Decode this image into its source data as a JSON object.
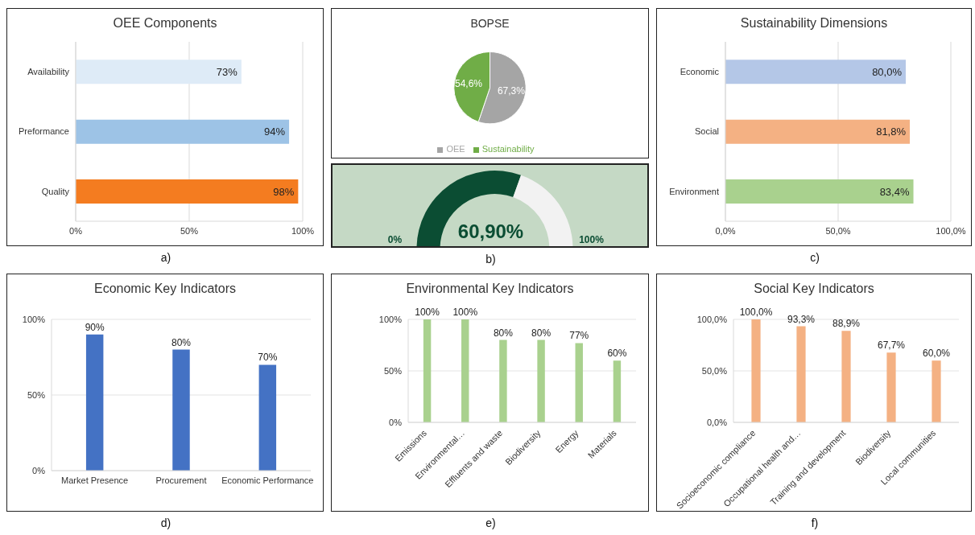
{
  "chart_data": [
    {
      "type": "bar",
      "orientation": "horizontal",
      "title": "OEE Components",
      "categories": [
        "Availability",
        "Preformance",
        "Quality"
      ],
      "values": [
        73,
        94,
        98
      ],
      "colors": [
        "#deebf7",
        "#9dc3e6",
        "#f47c20"
      ],
      "value_labels": [
        "73%",
        "94%",
        "98%"
      ],
      "xlim": [
        0,
        100
      ],
      "xticks": [
        {
          "value": 0,
          "label": "0%"
        },
        {
          "value": 50,
          "label": "50%"
        },
        {
          "value": 100,
          "label": "100%"
        }
      ],
      "grid": "x",
      "annotations": [
        "a)"
      ]
    },
    {
      "type": "pie",
      "title": "BOPSE",
      "categories": [
        "OEE",
        "Sustainability"
      ],
      "values": [
        67.3,
        54.6
      ],
      "colors": [
        "#a5a5a5",
        "#70ad47"
      ],
      "value_labels": [
        "67,3%",
        "54,6%"
      ],
      "legend": "bottom"
    },
    {
      "type": "donut",
      "categories": [
        null,
        null
      ],
      "values": [
        60.9,
        39.1
      ],
      "colors": [
        "#0b4d33",
        "#f2f2f2"
      ],
      "value_labels": [
        "60,90%",
        null
      ],
      "annotations": [
        "0%",
        "100%",
        "b)"
      ]
    },
    {
      "type": "bar",
      "orientation": "horizontal",
      "title": "Sustainability Dimensions",
      "categories": [
        "Economic",
        "Social",
        "Environment"
      ],
      "values": [
        80.0,
        81.8,
        83.4
      ],
      "colors": [
        "#b4c7e7",
        "#f4b183",
        "#a9d18e"
      ],
      "value_labels": [
        "80,0%",
        "81,8%",
        "83,4%"
      ],
      "xlim": [
        0,
        100
      ],
      "xticks": [
        {
          "value": 0,
          "label": "0,0%"
        },
        {
          "value": 50,
          "label": "50,0%"
        },
        {
          "value": 100,
          "label": "100,0%"
        }
      ],
      "grid": "x",
      "annotations": [
        "c)"
      ]
    },
    {
      "type": "bar",
      "title": "Economic Key Indicators",
      "categories": [
        "Market Presence",
        "Procurement",
        "Economic Performance"
      ],
      "values": [
        90,
        80,
        70
      ],
      "color": "#4472c4",
      "value_labels": [
        "90%",
        "80%",
        "70%"
      ],
      "ylim": [
        0,
        100
      ],
      "yticks": [
        {
          "value": 0,
          "label": "0%"
        },
        {
          "value": 50,
          "label": "50%"
        },
        {
          "value": 100,
          "label": "100%"
        }
      ],
      "grid": "y",
      "annotations": [
        "d)"
      ]
    },
    {
      "type": "bar",
      "title": "Environmental Key Indicators",
      "categories": [
        "Emissions",
        "Environmental…",
        "Effluents and waste",
        "Biodiversity",
        "Energy",
        "Materials"
      ],
      "values": [
        100,
        100,
        80,
        80,
        77,
        60
      ],
      "color": "#a9d18e",
      "value_labels": [
        "100%",
        "100%",
        "80%",
        "80%",
        "77%",
        "60%"
      ],
      "ylim": [
        0,
        100
      ],
      "yticks": [
        {
          "value": 0,
          "label": "0%"
        },
        {
          "value": 50,
          "label": "50%"
        },
        {
          "value": 100,
          "label": "100%"
        }
      ],
      "grid": "y",
      "annotations": [
        "e)"
      ]
    },
    {
      "type": "bar",
      "title": "Social Key Indicators",
      "categories": [
        "Socioeconomic compliance",
        "Occupational health and…",
        "Training and development",
        "Biodiversity",
        "Local communities"
      ],
      "values": [
        100.0,
        93.3,
        88.9,
        67.7,
        60.0
      ],
      "color": "#f4b183",
      "value_labels": [
        "100,0%",
        "93,3%",
        "88,9%",
        "67,7%",
        "60,0%"
      ],
      "ylim": [
        0,
        100
      ],
      "yticks": [
        {
          "value": 0,
          "label": "0,0%"
        },
        {
          "value": 50,
          "label": "50,0%"
        },
        {
          "value": 100,
          "label": "100,0%"
        }
      ],
      "grid": "y",
      "annotations": [
        "f)"
      ]
    }
  ]
}
